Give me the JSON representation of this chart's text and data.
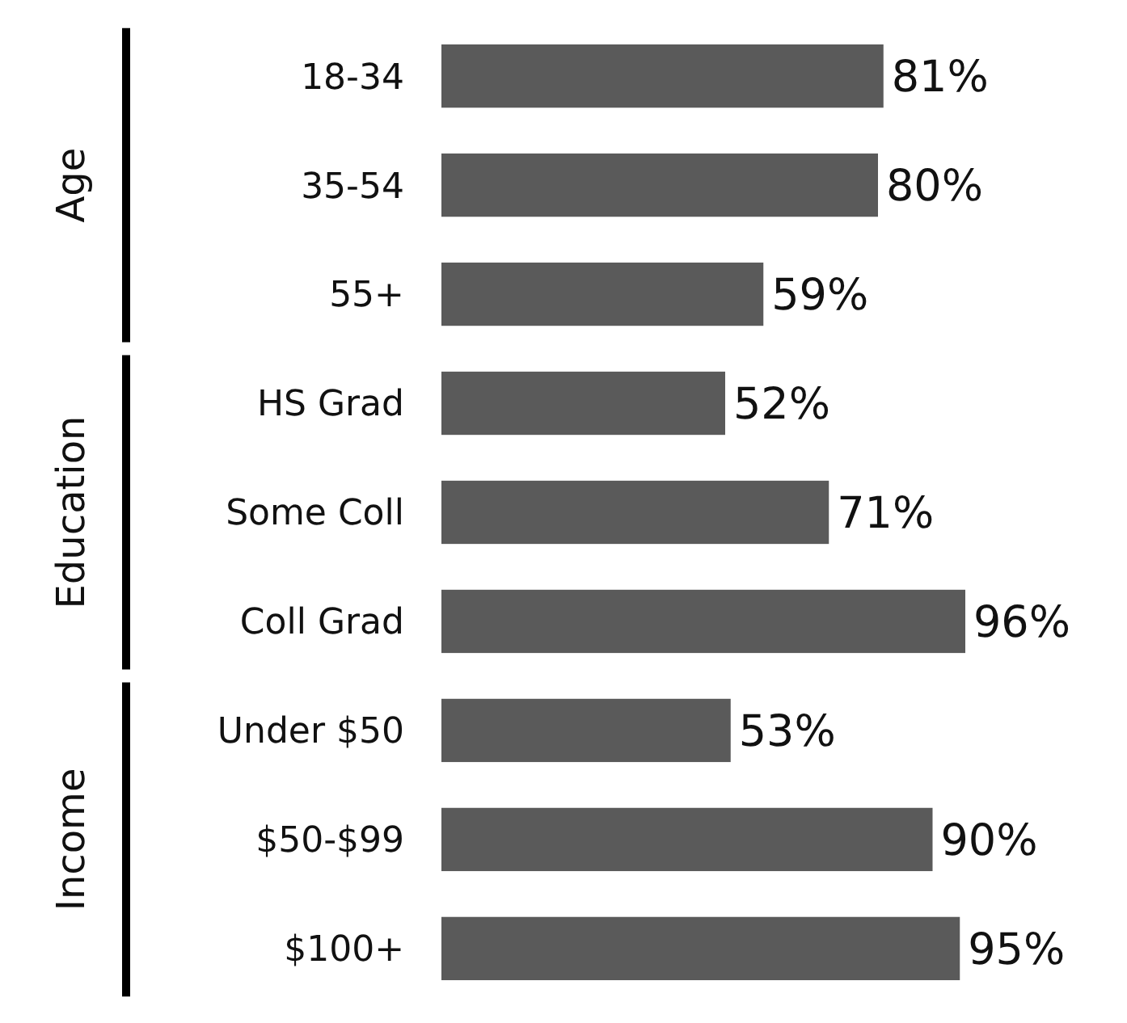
{
  "chart_data": {
    "type": "bar",
    "orientation": "horizontal",
    "categories": [
      "18-34",
      "35-54",
      "55+",
      "HS Grad",
      "Some Coll",
      "Coll Grad",
      "Under $50",
      "$50-$99",
      "$100+"
    ],
    "values": [
      81,
      80,
      59,
      52,
      71,
      96,
      53,
      90,
      95
    ],
    "value_labels": [
      "81%",
      "80%",
      "59%",
      "52%",
      "71%",
      "96%",
      "53%",
      "90%",
      "95%"
    ],
    "color": "#5a5a5a",
    "annotations": [
      "Age",
      "Education",
      "Income"
    ]
  }
}
